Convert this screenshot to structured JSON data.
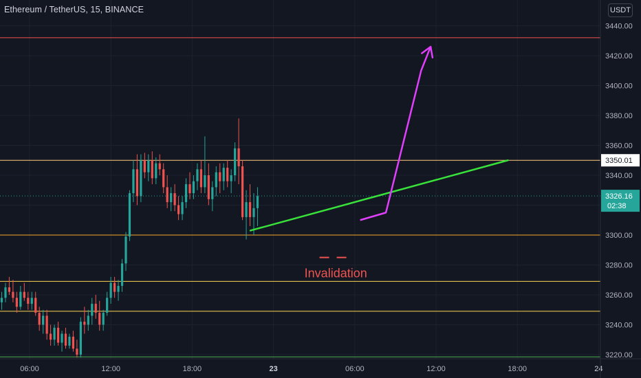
{
  "title": "Ethereum / TetherUS, 15, BINANCE",
  "currency": "USDT",
  "colors": {
    "background": "#131722",
    "grid": "#1e222d",
    "axis_text": "#b2b5be",
    "up": "#26a69a",
    "down": "#ef5350",
    "trendline": "#39e23a",
    "projection": "#e040fb",
    "annotation": "#f05350"
  },
  "chart_data": {
    "type": "candlestick",
    "ylim": [
      3218,
      3448
    ],
    "y_ticks": [
      3220,
      3240,
      3260,
      3280,
      3300,
      3320,
      3340,
      3360,
      3380,
      3400,
      3420,
      3440
    ],
    "y_tick_labels": [
      "3220.00",
      "3240.00",
      "3260.00",
      "3280.00",
      "3300.00",
      "3320.00",
      "3340.00",
      "3360.00",
      "3380.00",
      "3400.00",
      "3420.00",
      "3440.00"
    ],
    "x_ticks": [
      {
        "label": "06:00",
        "hours": 6
      },
      {
        "label": "12:00",
        "hours": 12
      },
      {
        "label": "18:00",
        "hours": 18
      },
      {
        "label": "23",
        "hours": 24
      },
      {
        "label": "06:00",
        "hours": 30
      },
      {
        "label": "12:00",
        "hours": 36
      },
      {
        "label": "18:00",
        "hours": 42
      },
      {
        "label": "24",
        "hours": 48
      }
    ],
    "grid": true,
    "horizontal_levels": [
      {
        "price": 3432,
        "color": "#f05350"
      },
      {
        "price": 3350.01,
        "color": "#ffcc80"
      },
      {
        "price": 3300,
        "color": "#f9a825"
      },
      {
        "price": 3269,
        "color": "#ffd54f"
      },
      {
        "price": 3249,
        "color": "#ffd54f"
      },
      {
        "price": 3218.5,
        "color": "#4caf50"
      }
    ],
    "current_price": {
      "price": 3326.16,
      "label": "3326.16",
      "countdown": "02:38"
    },
    "level_label": {
      "price": 3350.01,
      "label": "3350.01"
    },
    "trendline": {
      "from": {
        "hours": 22.3,
        "price": 3303
      },
      "to": {
        "hours": 41.3,
        "price": 3350
      }
    },
    "projection_path": [
      {
        "hours": 30.4,
        "price": 3310
      },
      {
        "hours": 32.3,
        "price": 3315
      },
      {
        "hours": 34.9,
        "price": 3410
      },
      {
        "hours": 35.6,
        "price": 3426
      }
    ],
    "invalidation": {
      "price": 3285,
      "from_hours": 27.4,
      "to_hours": 29.9,
      "label": "Invalidation",
      "hours": 28.6,
      "label_price": 3275
    },
    "candles": [
      [
        3255,
        3262,
        3250,
        3258
      ],
      [
        3258,
        3268,
        3255,
        3265
      ],
      [
        3265,
        3272,
        3260,
        3262
      ],
      [
        3262,
        3270,
        3255,
        3258
      ],
      [
        3258,
        3262,
        3248,
        3252
      ],
      [
        3252,
        3266,
        3250,
        3262
      ],
      [
        3262,
        3268,
        3256,
        3258
      ],
      [
        3258,
        3262,
        3250,
        3254
      ],
      [
        3254,
        3262,
        3250,
        3258
      ],
      [
        3258,
        3262,
        3246,
        3248
      ],
      [
        3248,
        3252,
        3236,
        3240
      ],
      [
        3240,
        3250,
        3234,
        3246
      ],
      [
        3246,
        3250,
        3230,
        3234
      ],
      [
        3234,
        3240,
        3226,
        3230
      ],
      [
        3230,
        3240,
        3226,
        3238
      ],
      [
        3238,
        3242,
        3226,
        3228
      ],
      [
        3228,
        3236,
        3222,
        3234
      ],
      [
        3234,
        3238,
        3224,
        3226
      ],
      [
        3226,
        3234,
        3224,
        3232
      ],
      [
        3232,
        3236,
        3222,
        3224
      ],
      [
        3224,
        3230,
        3218,
        3220
      ],
      [
        3220,
        3245,
        3218,
        3242
      ],
      [
        3242,
        3252,
        3234,
        3240
      ],
      [
        3240,
        3250,
        3236,
        3246
      ],
      [
        3246,
        3258,
        3240,
        3254
      ],
      [
        3254,
        3260,
        3244,
        3248
      ],
      [
        3248,
        3256,
        3236,
        3240
      ],
      [
        3240,
        3250,
        3236,
        3248
      ],
      [
        3248,
        3262,
        3246,
        3258
      ],
      [
        3258,
        3272,
        3254,
        3268
      ],
      [
        3268,
        3272,
        3258,
        3262
      ],
      [
        3262,
        3270,
        3256,
        3266
      ],
      [
        3266,
        3284,
        3262,
        3281
      ],
      [
        3281,
        3302,
        3276,
        3299
      ],
      [
        3299,
        3330,
        3296,
        3328
      ],
      [
        3328,
        3350,
        3322,
        3344
      ],
      [
        3344,
        3354,
        3320,
        3326
      ],
      [
        3326,
        3354,
        3322,
        3350
      ],
      [
        3350,
        3355,
        3338,
        3342
      ],
      [
        3342,
        3354,
        3336,
        3350
      ],
      [
        3350,
        3356,
        3334,
        3338
      ],
      [
        3338,
        3352,
        3334,
        3348
      ],
      [
        3348,
        3354,
        3340,
        3344
      ],
      [
        3344,
        3348,
        3328,
        3332
      ],
      [
        3332,
        3340,
        3318,
        3322
      ],
      [
        3322,
        3332,
        3316,
        3328
      ],
      [
        3328,
        3334,
        3316,
        3320
      ],
      [
        3320,
        3326,
        3310,
        3314
      ],
      [
        3314,
        3326,
        3310,
        3322
      ],
      [
        3322,
        3338,
        3318,
        3334
      ],
      [
        3334,
        3342,
        3324,
        3328
      ],
      [
        3328,
        3340,
        3324,
        3336
      ],
      [
        3336,
        3348,
        3330,
        3344
      ],
      [
        3344,
        3350,
        3328,
        3332
      ],
      [
        3332,
        3366,
        3328,
        3340
      ],
      [
        3340,
        3348,
        3320,
        3324
      ],
      [
        3324,
        3336,
        3316,
        3332
      ],
      [
        3332,
        3346,
        3326,
        3342
      ],
      [
        3342,
        3348,
        3328,
        3336
      ],
      [
        3336,
        3348,
        3330,
        3345
      ],
      [
        3345,
        3350,
        3332,
        3336
      ],
      [
        3336,
        3344,
        3328,
        3340
      ],
      [
        3340,
        3362,
        3336,
        3358
      ],
      [
        3358,
        3378,
        3334,
        3346
      ],
      [
        3346,
        3350,
        3310,
        3312
      ],
      [
        3312,
        3330,
        3297,
        3322
      ],
      [
        3322,
        3334,
        3306,
        3312
      ],
      [
        3312,
        3328,
        3300,
        3318
      ],
      [
        3318,
        3332,
        3306,
        3326
      ]
    ]
  }
}
